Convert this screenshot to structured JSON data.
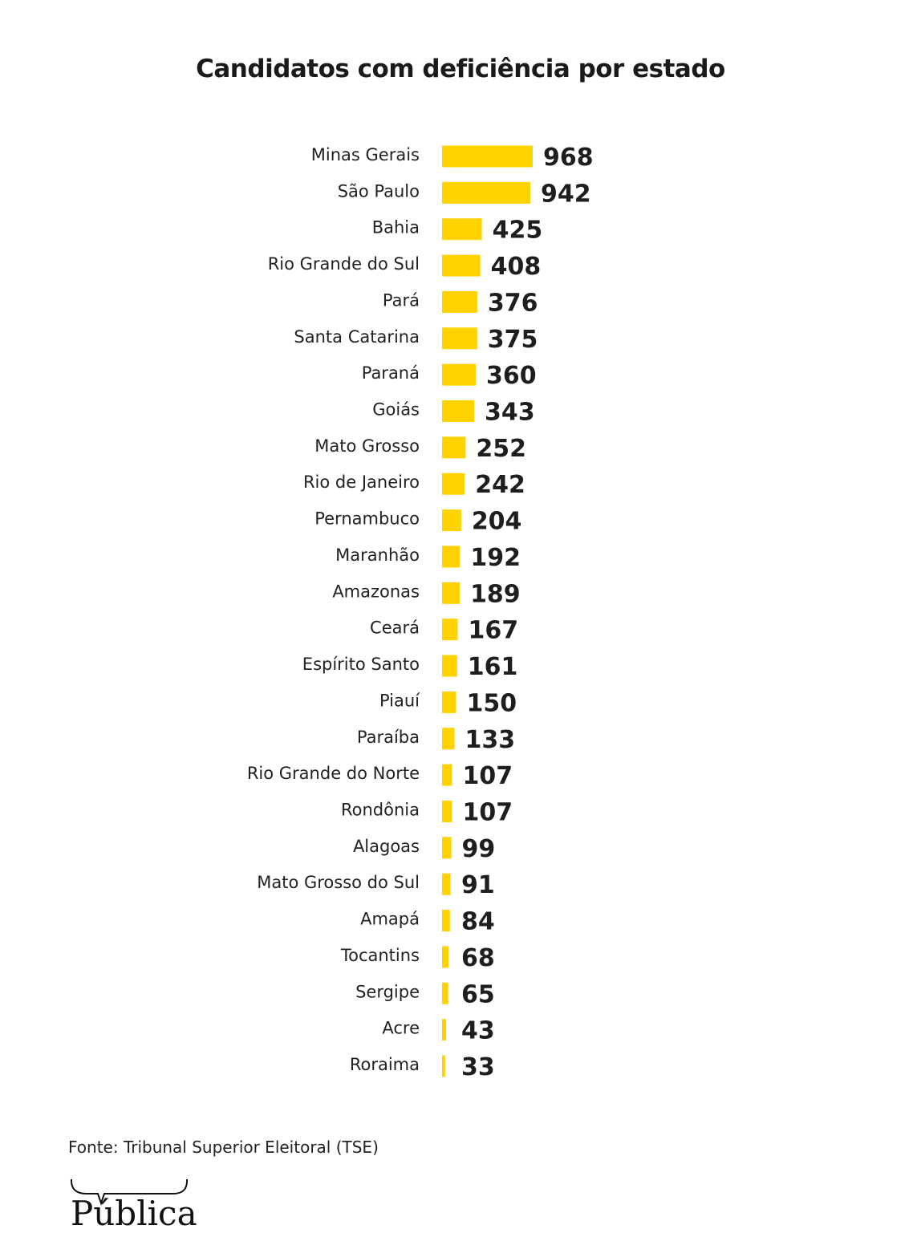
{
  "chart_data": {
    "type": "bar",
    "orientation": "horizontal",
    "title": "Candidatos com deficiência por estado",
    "categories": [
      "Minas Gerais",
      "São Paulo",
      "Bahia",
      "Rio Grande do Sul",
      "Pará",
      "Santa Catarina",
      "Paraná",
      "Goiás",
      "Mato Grosso",
      "Rio de Janeiro",
      "Pernambuco",
      "Maranhão",
      "Amazonas",
      "Ceará",
      "Espírito Santo",
      "Piauí",
      "Paraíba",
      "Rio Grande do Norte",
      "Rondônia",
      "Alagoas",
      "Mato Grosso do Sul",
      "Amapá",
      "Tocantins",
      "Sergipe",
      "Acre",
      "Roraima"
    ],
    "values": [
      968,
      942,
      425,
      408,
      376,
      375,
      360,
      343,
      252,
      242,
      204,
      192,
      189,
      167,
      161,
      150,
      133,
      107,
      107,
      99,
      91,
      84,
      68,
      65,
      43,
      33
    ],
    "xlabel": "",
    "ylabel": "",
    "grid": false,
    "bar_color": "#FFD200"
  },
  "source": "Fonte: Tribunal Superior Eleitoral (TSE)",
  "logo": "Pública"
}
